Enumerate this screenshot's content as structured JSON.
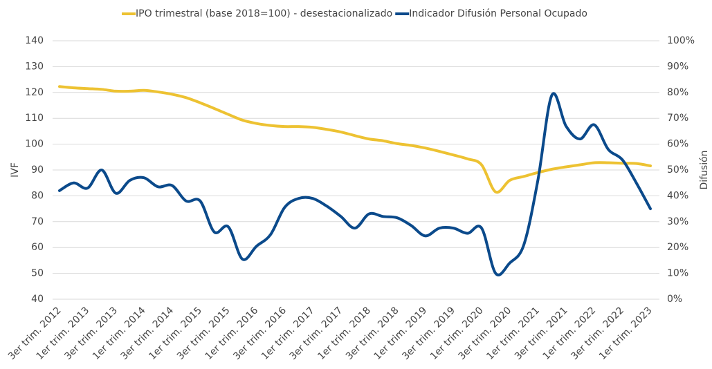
{
  "chart_data": {
    "type": "line",
    "categories": [
      "3er trim. 2012",
      null,
      "1er trim. 2013",
      null,
      "3er trim. 2013",
      null,
      "1er trim. 2014",
      null,
      "3er trim. 2014",
      null,
      "1er trim. 2015",
      null,
      "3er trim. 2015",
      null,
      "1er trim. 2016",
      null,
      "3er trim. 2016",
      null,
      "1er trim. 2017",
      null,
      "3er trim. 2017",
      null,
      "1er trim. 2018",
      null,
      "3er trim. 2018",
      null,
      "1er trim. 2019",
      null,
      "3er trim. 2019",
      null,
      "1er trim. 2020",
      null,
      "3er trim. 2020",
      null,
      "1er trim. 2021",
      null,
      "3er trim. 2021",
      null,
      "1er trim. 2022",
      null,
      "3er trim. 2022",
      null,
      "1er trim. 2023"
    ],
    "series": [
      {
        "name": "IPO trimestral (base 2018=100) - desestacionalizado",
        "color": "#EDC232",
        "axis": "y",
        "values": [
          122.3,
          121.8,
          121.5,
          121.2,
          120.5,
          120.5,
          120.8,
          120.2,
          119.3,
          118,
          116,
          113.8,
          111.5,
          109.3,
          108,
          107.2,
          106.8,
          106.8,
          106.5,
          105.7,
          104.7,
          103.3,
          102,
          101.3,
          100.2,
          99.5,
          98.5,
          97.2,
          95.8,
          94.3,
          92,
          81.5,
          86,
          87.5,
          89,
          90.3,
          91.2,
          92,
          92.8,
          92.8,
          92.6,
          92.5,
          91.6
        ]
      },
      {
        "name": "Indicador Difusión Personal Ocupado",
        "color": "#0B4A8B",
        "axis": "y2",
        "values": [
          42,
          45,
          43,
          50,
          41,
          46,
          47,
          43.5,
          44,
          38,
          38,
          26,
          28,
          15.5,
          20.5,
          25,
          35.5,
          39,
          39,
          36,
          32,
          27.5,
          33,
          32,
          31.5,
          28.5,
          24.5,
          27.5,
          27.5,
          25.5,
          27.5,
          10,
          14,
          21,
          46,
          79,
          67,
          62,
          67.5,
          58,
          54,
          45,
          35
        ]
      }
    ],
    "ylabel": "IVF",
    "y2label": "Difusión",
    "ylim": [
      40,
      140
    ],
    "yticks": [
      40,
      50,
      60,
      70,
      80,
      90,
      100,
      110,
      120,
      130,
      140
    ],
    "y2lim": [
      0,
      100
    ],
    "y2ticks": [
      {
        "value": 0,
        "label": "0%"
      },
      {
        "value": 10,
        "label": "10%"
      },
      {
        "value": 20,
        "label": "20%"
      },
      {
        "value": 30,
        "label": "30%"
      },
      {
        "value": 40,
        "label": "40%"
      },
      {
        "value": 50,
        "label": "50%"
      },
      {
        "value": 60,
        "label": "60%"
      },
      {
        "value": 70,
        "label": "70%"
      },
      {
        "value": 80,
        "label": "80%"
      },
      {
        "value": 90,
        "label": "90%"
      },
      {
        "value": 100,
        "label": "100%"
      }
    ],
    "grid": true,
    "legend": "top"
  }
}
